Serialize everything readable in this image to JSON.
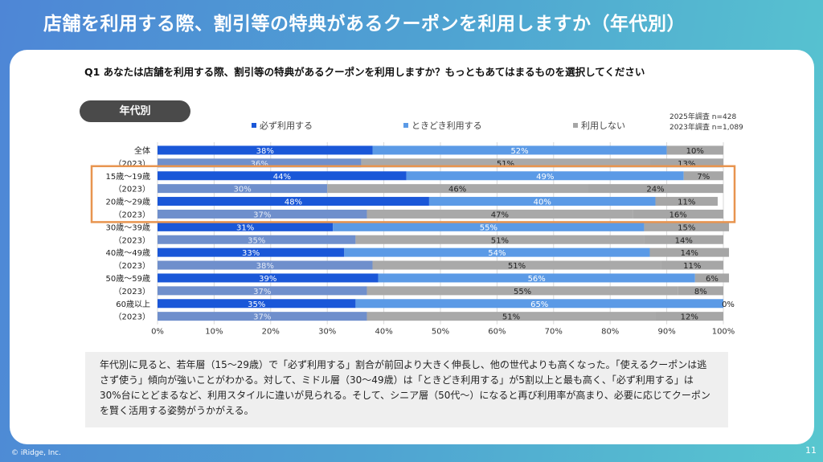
{
  "slide": {
    "title": "店舗を利用する際、割引等の特典があるクーポンを利用しますか（年代別）",
    "question": "Q1 あなたは店舗を利用する際、割引等の特典があるクーポンを利用しますか？もっともあてはまるものを選択してください",
    "section_label": "年代別",
    "survey_2025": "2025年調査 n=428",
    "survey_2023": "2023年調査 n=1,089",
    "comment": "年代別に見ると、若年層（15〜29歳）で「必ず利用する」割合が前回より大きく伸長し、他の世代よりも高くなった。「使えるクーポンは逃さず使う」傾向が強いことがわかる。対して、ミドル層（30〜49歳）は「ときどき利用する」が5割以上と最も高く、「必ず利用する」は30%台にとどまるなど、利用スタイルに違いが見られる。そして、シニア層（50代〜）になると再び利用率が高まり、必要に応じてクーポンを賢く活用する姿勢がうかがえる。",
    "copyright": "© iRidge, Inc.",
    "page_number": "11"
  },
  "chart_data": {
    "type": "bar",
    "orientation": "horizontal",
    "stacked": true,
    "xlim": [
      0,
      100
    ],
    "x_ticks": [
      "0%",
      "10%",
      "20%",
      "30%",
      "40%",
      "50%",
      "60%",
      "70%",
      "80%",
      "90%",
      "100%"
    ],
    "legend_position": "top",
    "series": [
      {
        "name": "必ず利用する",
        "color_2025": "#1a57d8",
        "color_2023": "#6f8fcc"
      },
      {
        "name": "ときどき利用する",
        "color_2025": "#5b9ae6",
        "color_2023": "#a9a9a9"
      },
      {
        "name": "利用しない",
        "color_2025": "#a6a6a6",
        "color_2023": "#a6a6a6"
      }
    ],
    "highlight": {
      "from_row": 2,
      "to_row": 5,
      "color": "#e8944f"
    },
    "rows": [
      {
        "label": "全体",
        "year": "2025",
        "values": [
          38,
          52,
          10
        ],
        "labels": [
          "38%",
          "52%",
          "10%"
        ]
      },
      {
        "label": "（2023）",
        "year": "2023",
        "values": [
          36,
          51,
          13
        ],
        "labels": [
          "36%",
          "51%",
          "13%"
        ]
      },
      {
        "label": "15歳～19歳",
        "year": "2025",
        "values": [
          44,
          49,
          7
        ],
        "labels": [
          "44%",
          "49%",
          "7%"
        ]
      },
      {
        "label": "（2023）",
        "year": "2023",
        "values": [
          30,
          46,
          24
        ],
        "labels": [
          "30%",
          "46%",
          "24%"
        ]
      },
      {
        "label": "20歳～29歳",
        "year": "2025",
        "values": [
          48,
          40,
          11
        ],
        "labels": [
          "48%",
          "40%",
          "11%"
        ]
      },
      {
        "label": "（2023）",
        "year": "2023",
        "values": [
          37,
          47,
          16
        ],
        "labels": [
          "37%",
          "47%",
          "16%"
        ]
      },
      {
        "label": "30歳～39歳",
        "year": "2025",
        "values": [
          31,
          55,
          15
        ],
        "labels": [
          "31%",
          "55%",
          "15%"
        ]
      },
      {
        "label": "（2023）",
        "year": "2023",
        "values": [
          35,
          51,
          14
        ],
        "labels": [
          "35%",
          "51%",
          "14%"
        ]
      },
      {
        "label": "40歳～49歳",
        "year": "2025",
        "values": [
          33,
          54,
          14
        ],
        "labels": [
          "33%",
          "54%",
          "14%"
        ]
      },
      {
        "label": "（2023）",
        "year": "2023",
        "values": [
          38,
          51,
          11
        ],
        "labels": [
          "38%",
          "51%",
          "11%"
        ]
      },
      {
        "label": "50歳～59歳",
        "year": "2025",
        "values": [
          39,
          56,
          6
        ],
        "labels": [
          "39%",
          "56%",
          "6%"
        ]
      },
      {
        "label": "（2023）",
        "year": "2023",
        "values": [
          37,
          55,
          8
        ],
        "labels": [
          "37%",
          "55%",
          "8%"
        ]
      },
      {
        "label": "60歳以上",
        "year": "2025",
        "values": [
          35,
          65,
          0
        ],
        "labels": [
          "35%",
          "65%",
          "0%"
        ]
      },
      {
        "label": "（2023）",
        "year": "2023",
        "values": [
          37,
          51,
          12
        ],
        "labels": [
          "37%",
          "51%",
          "12%"
        ]
      }
    ]
  }
}
